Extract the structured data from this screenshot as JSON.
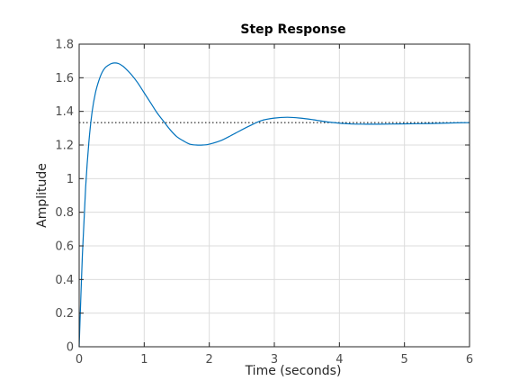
{
  "chart_data": {
    "type": "line",
    "title": "Step Response",
    "xlabel": "Time (seconds)",
    "ylabel": "Amplitude",
    "xlim": [
      0,
      6
    ],
    "ylim": [
      0,
      1.8
    ],
    "grid": true,
    "xticks": [
      0,
      1,
      2,
      3,
      4,
      5,
      6
    ],
    "xtick_labels": [
      "0",
      "1",
      "2",
      "3",
      "4",
      "5",
      "6"
    ],
    "yticks": [
      0,
      0.2,
      0.4,
      0.6,
      0.8,
      1,
      1.2,
      1.4,
      1.6,
      1.8
    ],
    "ytick_labels": [
      "0",
      "0.2",
      "0.4",
      "0.6",
      "0.8",
      "1",
      "1.2",
      "1.4",
      "1.6",
      "1.8"
    ],
    "steady_state": 1.333,
    "line_color": "#0072bd",
    "series": [
      {
        "x": [
          0,
          0.05,
          0.1,
          0.15,
          0.2,
          0.25,
          0.3,
          0.35,
          0.4,
          0.45,
          0.5,
          0.55,
          0.6,
          0.65,
          0.7,
          0.8,
          0.9,
          1.0,
          1.1,
          1.2,
          1.3,
          1.4,
          1.5,
          1.6,
          1.7,
          1.8,
          1.9,
          2.0,
          2.2,
          2.4,
          2.6,
          2.8,
          3.0,
          3.2,
          3.4,
          3.6,
          3.8,
          4.0,
          4.2,
          4.4,
          4.6,
          4.8,
          5.0,
          5.2,
          5.4,
          5.6,
          5.8,
          6.0
        ],
        "y": [
          0.0,
          0.55,
          0.95,
          1.22,
          1.4,
          1.51,
          1.58,
          1.63,
          1.66,
          1.675,
          1.685,
          1.688,
          1.685,
          1.675,
          1.66,
          1.62,
          1.57,
          1.51,
          1.45,
          1.39,
          1.34,
          1.29,
          1.25,
          1.225,
          1.205,
          1.2,
          1.2,
          1.205,
          1.23,
          1.27,
          1.31,
          1.345,
          1.36,
          1.365,
          1.36,
          1.35,
          1.338,
          1.33,
          1.325,
          1.324,
          1.324,
          1.325,
          1.326,
          1.327,
          1.328,
          1.33,
          1.332,
          1.333
        ]
      }
    ]
  }
}
